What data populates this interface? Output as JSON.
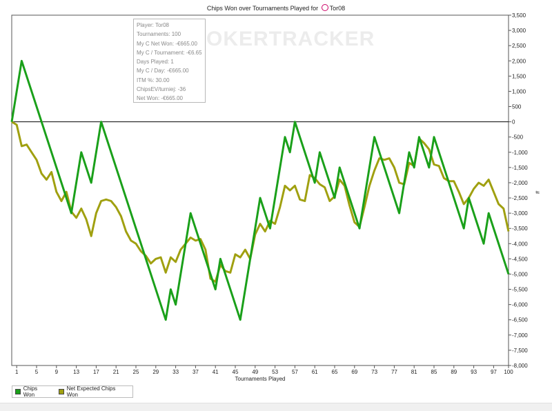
{
  "window": {
    "title_prefix": "Chips Won over Tournaments Played for",
    "player_name": "Tor08"
  },
  "watermark": "POKERTRACKER",
  "tooltip": {
    "lines": [
      "Player: Tor08",
      "Tournaments: 100",
      "My C Net Won: -€665.00",
      "My C / Tournament: -€6.65",
      "Days Played: 1",
      "My C / Day: -€665.00",
      "ITM %: 30.00",
      "ChipsEV/turniej: -36",
      "Net Won: -€665.00"
    ]
  },
  "colors": {
    "chips_won": "#1aa01a",
    "net_expected": "#a0a010",
    "zero_line": "#000000"
  },
  "chart_data": {
    "type": "line",
    "title": "Chips Won over Tournaments Played for Tor08",
    "xlabel": "Tournaments Played",
    "ylabel": "#",
    "xlim": [
      0,
      100
    ],
    "ylim": [
      -8000,
      3500
    ],
    "x_ticks": [
      1,
      5,
      9,
      13,
      17,
      21,
      25,
      29,
      33,
      37,
      41,
      45,
      49,
      53,
      57,
      61,
      65,
      69,
      73,
      77,
      81,
      85,
      89,
      93,
      97,
      100
    ],
    "y_ticks": [
      3500,
      3000,
      2500,
      2000,
      1500,
      1000,
      500,
      0,
      -500,
      -1000,
      -1500,
      -2000,
      -2500,
      -3000,
      -3500,
      -4000,
      -4500,
      -5000,
      -5500,
      -6000,
      -6500,
      -7000,
      -7500,
      -8000
    ],
    "y_tick_labels": [
      "3,500",
      "3,000",
      "2,500",
      "2,000",
      "1,500",
      "1,000",
      "500",
      "0",
      "-500",
      "-1,000",
      "-1,500",
      "-2,000",
      "-2,500",
      "-3,000",
      "-3,500",
      "-4,000",
      "-4,500",
      "-5,000",
      "-5,500",
      "-6,000",
      "-6,500",
      "-7,000",
      "-7,500",
      "-8,000"
    ],
    "series": [
      {
        "name": "Chips Won",
        "points": [
          [
            0,
            0
          ],
          [
            2,
            2000
          ],
          [
            12,
            -3000
          ],
          [
            14,
            -1000
          ],
          [
            16,
            -2000
          ],
          [
            18,
            0
          ],
          [
            31,
            -6500
          ],
          [
            32,
            -5500
          ],
          [
            33,
            -6000
          ],
          [
            36,
            -3000
          ],
          [
            41,
            -5500
          ],
          [
            42,
            -4500
          ],
          [
            46,
            -6500
          ],
          [
            50,
            -2500
          ],
          [
            52,
            -3500
          ],
          [
            55,
            -500
          ],
          [
            56,
            -1000
          ],
          [
            57,
            0
          ],
          [
            61,
            -2000
          ],
          [
            62,
            -1000
          ],
          [
            65,
            -2500
          ],
          [
            66,
            -1500
          ],
          [
            70,
            -3500
          ],
          [
            73,
            -500
          ],
          [
            78,
            -3000
          ],
          [
            80,
            -1000
          ],
          [
            81,
            -1500
          ],
          [
            82,
            -500
          ],
          [
            84,
            -1500
          ],
          [
            85,
            -500
          ],
          [
            91,
            -3500
          ],
          [
            92,
            -2500
          ],
          [
            95,
            -4000
          ],
          [
            96,
            -3000
          ],
          [
            100,
            -5000
          ]
        ]
      },
      {
        "name": "Net Expected Chips Won",
        "points": [
          [
            0,
            0
          ],
          [
            1,
            -100
          ],
          [
            2,
            -800
          ],
          [
            3,
            -750
          ],
          [
            4,
            -1000
          ],
          [
            5,
            -1250
          ],
          [
            6,
            -1700
          ],
          [
            7,
            -1900
          ],
          [
            8,
            -1650
          ],
          [
            9,
            -2300
          ],
          [
            10,
            -2600
          ],
          [
            11,
            -2300
          ],
          [
            12,
            -2950
          ],
          [
            13,
            -3150
          ],
          [
            14,
            -2850
          ],
          [
            15,
            -3200
          ],
          [
            16,
            -3750
          ],
          [
            17,
            -3000
          ],
          [
            18,
            -2600
          ],
          [
            19,
            -2550
          ],
          [
            20,
            -2600
          ],
          [
            21,
            -2800
          ],
          [
            22,
            -3100
          ],
          [
            23,
            -3600
          ],
          [
            24,
            -3900
          ],
          [
            25,
            -4000
          ],
          [
            26,
            -4250
          ],
          [
            27,
            -4400
          ],
          [
            28,
            -4650
          ],
          [
            29,
            -4500
          ],
          [
            30,
            -4450
          ],
          [
            31,
            -4950
          ],
          [
            32,
            -4450
          ],
          [
            33,
            -4600
          ],
          [
            34,
            -4200
          ],
          [
            35,
            -4000
          ],
          [
            36,
            -3800
          ],
          [
            37,
            -3900
          ],
          [
            38,
            -3850
          ],
          [
            39,
            -4200
          ],
          [
            40,
            -5150
          ],
          [
            41,
            -5250
          ],
          [
            42,
            -4700
          ],
          [
            43,
            -4900
          ],
          [
            44,
            -4950
          ],
          [
            45,
            -4350
          ],
          [
            46,
            -4450
          ],
          [
            47,
            -4200
          ],
          [
            48,
            -4500
          ],
          [
            49,
            -3700
          ],
          [
            50,
            -3350
          ],
          [
            51,
            -3600
          ],
          [
            52,
            -3250
          ],
          [
            53,
            -3350
          ],
          [
            54,
            -2800
          ],
          [
            55,
            -2100
          ],
          [
            56,
            -2250
          ],
          [
            57,
            -2100
          ],
          [
            58,
            -2550
          ],
          [
            59,
            -2600
          ],
          [
            60,
            -1750
          ],
          [
            61,
            -1850
          ],
          [
            62,
            -2050
          ],
          [
            63,
            -2150
          ],
          [
            64,
            -2600
          ],
          [
            65,
            -2450
          ],
          [
            66,
            -1900
          ],
          [
            67,
            -2100
          ],
          [
            68,
            -2750
          ],
          [
            69,
            -3300
          ],
          [
            70,
            -3450
          ],
          [
            71,
            -2800
          ],
          [
            72,
            -2100
          ],
          [
            73,
            -1600
          ],
          [
            74,
            -1200
          ],
          [
            75,
            -1250
          ],
          [
            76,
            -1200
          ],
          [
            77,
            -1500
          ],
          [
            78,
            -2000
          ],
          [
            79,
            -2050
          ],
          [
            80,
            -1350
          ],
          [
            81,
            -1450
          ],
          [
            82,
            -550
          ],
          [
            83,
            -700
          ],
          [
            84,
            -900
          ],
          [
            85,
            -1400
          ],
          [
            86,
            -1450
          ],
          [
            87,
            -1850
          ],
          [
            88,
            -1950
          ],
          [
            89,
            -1950
          ],
          [
            90,
            -2300
          ],
          [
            91,
            -2700
          ],
          [
            92,
            -2500
          ],
          [
            93,
            -2200
          ],
          [
            94,
            -2000
          ],
          [
            95,
            -2100
          ],
          [
            96,
            -1900
          ],
          [
            97,
            -2300
          ],
          [
            98,
            -2700
          ],
          [
            99,
            -2850
          ],
          [
            100,
            -3600
          ]
        ]
      }
    ],
    "legend": [
      "Chips Won",
      "Net Expected Chips Won"
    ],
    "legend_position": "bottom-left"
  }
}
